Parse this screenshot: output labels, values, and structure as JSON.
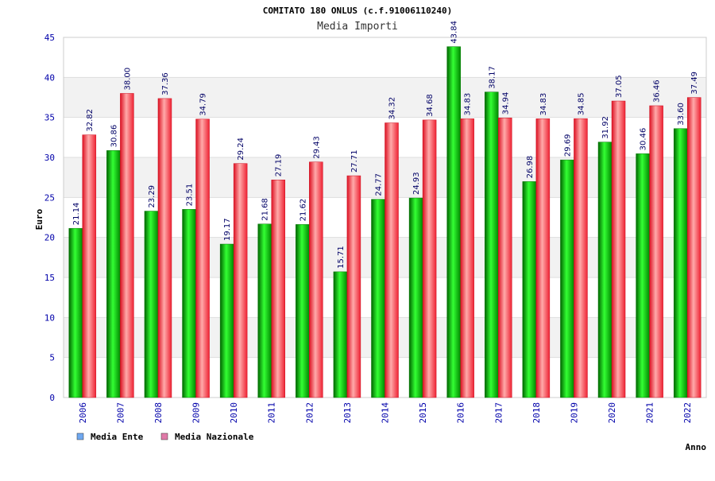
{
  "chart_data": {
    "type": "bar",
    "title": "COMITATO 180 ONLUS (c.f.91006110240)",
    "subtitle": "Media Importi",
    "xlabel": "Anno",
    "ylabel": "Euro",
    "ylim": [
      0,
      45
    ],
    "yticks": [
      "0",
      "5",
      "10",
      "15",
      "20",
      "25",
      "30",
      "35",
      "40",
      "45"
    ],
    "grid": true,
    "legend_position": "bottom-left",
    "categories": [
      "2006",
      "2007",
      "2008",
      "2009",
      "2010",
      "2011",
      "2012",
      "2013",
      "2014",
      "2015",
      "2016",
      "2017",
      "2018",
      "2019",
      "2020",
      "2021",
      "2022"
    ],
    "series": [
      {
        "name": "Media Ente",
        "color": "#00aa00",
        "legend_color": "#6fa8f0",
        "values": [
          21.14,
          30.86,
          23.29,
          23.51,
          19.17,
          21.68,
          21.62,
          15.71,
          24.77,
          24.93,
          43.84,
          38.17,
          26.98,
          29.69,
          31.92,
          30.46,
          33.6
        ],
        "labels": [
          "21.14",
          "30.86",
          "23.29",
          "23.51",
          "19.17",
          "21.68",
          "21.62",
          "15.71",
          "24.77",
          "24.93",
          "43.84",
          "38.17",
          "26.98",
          "29.69",
          "31.92",
          "30.46",
          "33.60"
        ]
      },
      {
        "name": "Media Nazionale",
        "color": "#ee2233",
        "legend_color": "#e07aa8",
        "values": [
          32.82,
          38.0,
          37.36,
          34.79,
          29.24,
          27.19,
          29.43,
          27.71,
          34.32,
          34.68,
          34.83,
          34.94,
          34.83,
          34.85,
          37.05,
          36.46,
          37.49
        ],
        "labels": [
          "32.82",
          "38.00",
          "37.36",
          "34.79",
          "29.24",
          "27.19",
          "29.43",
          "27.71",
          "34.32",
          "34.68",
          "34.83",
          "34.94",
          "34.83",
          "34.85",
          "37.05",
          "36.46",
          "37.49"
        ]
      }
    ]
  }
}
